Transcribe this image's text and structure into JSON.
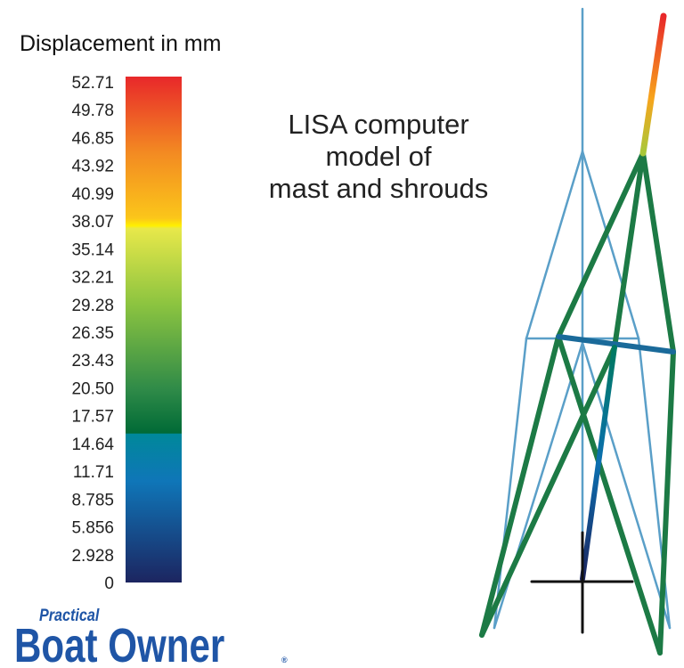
{
  "legend": {
    "title": "Displacement in mm",
    "ticks": [
      "52.71",
      "49.78",
      "46.85",
      "43.92",
      "40.99",
      "38.07",
      "35.14",
      "32.21",
      "29.28",
      "26.35",
      "23.43",
      "20.50",
      "17.57",
      "14.64",
      "11.71",
      "8.785",
      "5.856",
      "2.928",
      "0"
    ]
  },
  "caption": {
    "lines": [
      "LISA computer",
      "model of",
      "mast and shrouds"
    ]
  },
  "logo": {
    "small": "Practical",
    "large": "Boat Owner",
    "mark": "®"
  }
}
